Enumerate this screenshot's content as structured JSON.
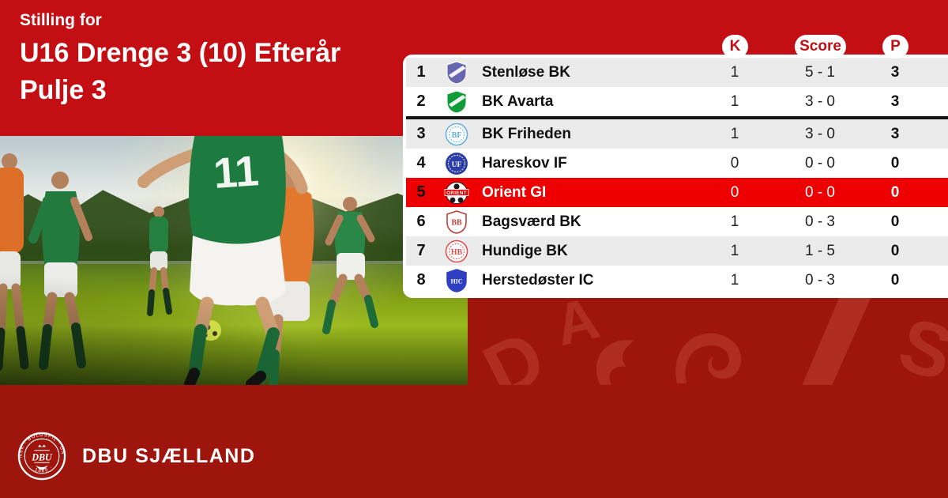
{
  "header": {
    "eyebrow": "Stilling for",
    "title_line1": "U16 Drenge 3 (10) Efterår",
    "title_line2": "Pulje 3"
  },
  "standings": {
    "columns": [
      "K",
      "Score",
      "P"
    ],
    "divider_after_rank": 2,
    "highlighted_rank": 5,
    "rows": [
      {
        "rank": "1",
        "club": "Stenløse BK",
        "k": "1",
        "score": "5 - 1",
        "p": "3",
        "logo": {
          "kind": "shield-stripe",
          "color": "#6766ae",
          "monogram": ""
        }
      },
      {
        "rank": "2",
        "club": "BK Avarta",
        "k": "1",
        "score": "3 - 0",
        "p": "3",
        "logo": {
          "kind": "shield-stripe",
          "color": "#119b39",
          "monogram": ""
        }
      },
      {
        "rank": "3",
        "club": "BK Friheden",
        "k": "1",
        "score": "3 - 0",
        "p": "3",
        "logo": {
          "kind": "circle-outline",
          "color": "#5fb0e0",
          "monogram": "BF"
        }
      },
      {
        "rank": "4",
        "club": "Hareskov IF",
        "k": "0",
        "score": "0 - 0",
        "p": "0",
        "logo": {
          "kind": "circle-solid",
          "color": "#2a3da8",
          "monogram": "UF"
        }
      },
      {
        "rank": "5",
        "club": "Orient GI",
        "k": "0",
        "score": "0 - 0",
        "p": "0",
        "highlighted": true,
        "logo": {
          "kind": "football",
          "color": "#e00000",
          "monogram": "ORIENT"
        }
      },
      {
        "rank": "6",
        "club": "Bagsværd BK",
        "k": "1",
        "score": "0 - 3",
        "p": "0",
        "logo": {
          "kind": "shield-mono",
          "color": "#c0403c",
          "fillWhite": true,
          "monogram": "BB"
        }
      },
      {
        "rank": "7",
        "club": "Hundige BK",
        "k": "1",
        "score": "1 - 5",
        "p": "0",
        "logo": {
          "kind": "circle-outline",
          "color": "#e05050",
          "monogram": "HB"
        }
      },
      {
        "rank": "8",
        "club": "Herstedøster IC",
        "k": "1",
        "score": "0 - 3",
        "p": "0",
        "logo": {
          "kind": "shield-mono",
          "color": "#2f3fc1",
          "fillWhite": false,
          "monogram": "HIC"
        }
      }
    ]
  },
  "footer": {
    "brand": "DBU SJÆLLAND",
    "emblem_center": "DBU",
    "emblem_ring_top": "DANSK · BOLDSPIL · UNION",
    "emblem_ring_bottom": "· 1889 ·"
  },
  "decor": {
    "photo_jersey_number": "11",
    "watermark_letters": [
      "D",
      "A",
      "S"
    ]
  },
  "colors": {
    "bg_top": "#c30f14",
    "bg_bottom": "#9e150d",
    "watermark": "#ae2d20",
    "highlight_row": "#ee0000",
    "row_alt": "#ebebeb",
    "pill_text": "#c30f14",
    "divider": "#141414"
  }
}
